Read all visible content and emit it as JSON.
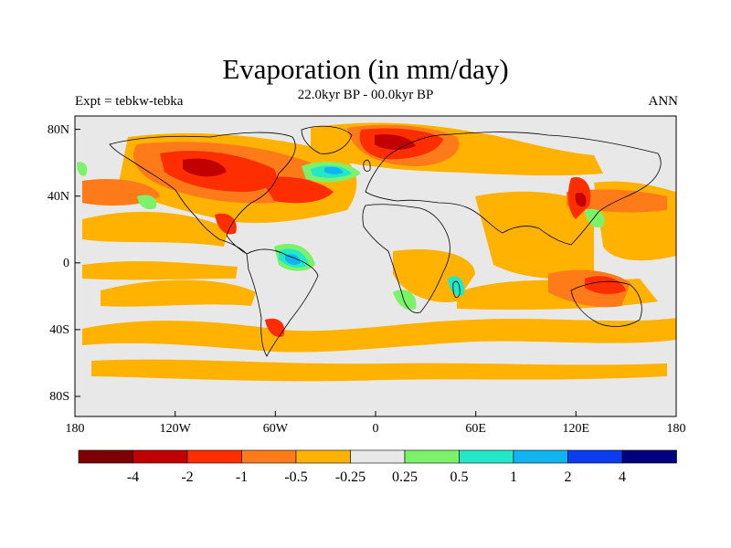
{
  "title": "Evaporation (in mm/day)",
  "subtitle": "22.0kyr BP - 00.0kyr BP",
  "experiment": "Expt = tebkw-tebka",
  "season": "ANN",
  "axes": {
    "lat_labels": [
      "80N",
      "40N",
      "0",
      "40S",
      "80S"
    ],
    "lon_labels": [
      "180",
      "120W",
      "60W",
      "0",
      "60E",
      "120E",
      "180"
    ]
  },
  "colorbar": {
    "colors": [
      "#7f0000",
      "#c30000",
      "#ff2e00",
      "#ff7a18",
      "#ffb300",
      "#e8e8e8",
      "#7cf26a",
      "#22e8c8",
      "#10b4f0",
      "#0a3cf0",
      "#00007f"
    ],
    "labels": [
      "-4",
      "-2",
      "-1",
      "-0.5",
      "-0.25",
      "0.25",
      "0.5",
      "1",
      "2",
      "4"
    ]
  },
  "colors": {
    "background": "#e8e8e8",
    "coast": "#000000"
  }
}
